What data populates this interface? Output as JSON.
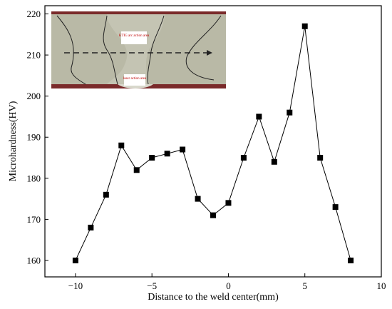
{
  "chart_data": {
    "type": "line",
    "xlabel": "Distance to the weld center(mm)",
    "ylabel": "Microhardness(HV)",
    "xlim": [
      -12,
      10
    ],
    "ylim": [
      156,
      222
    ],
    "x_ticks": [
      -10,
      -5,
      0,
      5,
      10
    ],
    "y_ticks": [
      160,
      170,
      180,
      190,
      200,
      210,
      220
    ],
    "x_tick_labels": [
      "−10",
      "−5",
      "0",
      "5",
      "10"
    ],
    "y_tick_labels": [
      "160",
      "170",
      "180",
      "190",
      "200",
      "210",
      "220"
    ],
    "marker": "square",
    "series": [
      {
        "x": [
          -10,
          -9,
          -8,
          -7,
          -6,
          -5,
          -4,
          -3,
          -2,
          -1,
          0,
          1,
          2,
          3,
          4,
          5,
          6,
          7,
          8
        ],
        "values": [
          160,
          168,
          176,
          188,
          182,
          185,
          186,
          187,
          175,
          171,
          174,
          185,
          195,
          184,
          196,
          217,
          185,
          173,
          160
        ]
      }
    ],
    "colors": {
      "line": "#000000",
      "marker": "#000000"
    },
    "inset": {
      "description_labels": [
        "KTIG arc action area",
        "laser action area"
      ],
      "label_colors": {
        "text": "#c00000"
      }
    }
  }
}
